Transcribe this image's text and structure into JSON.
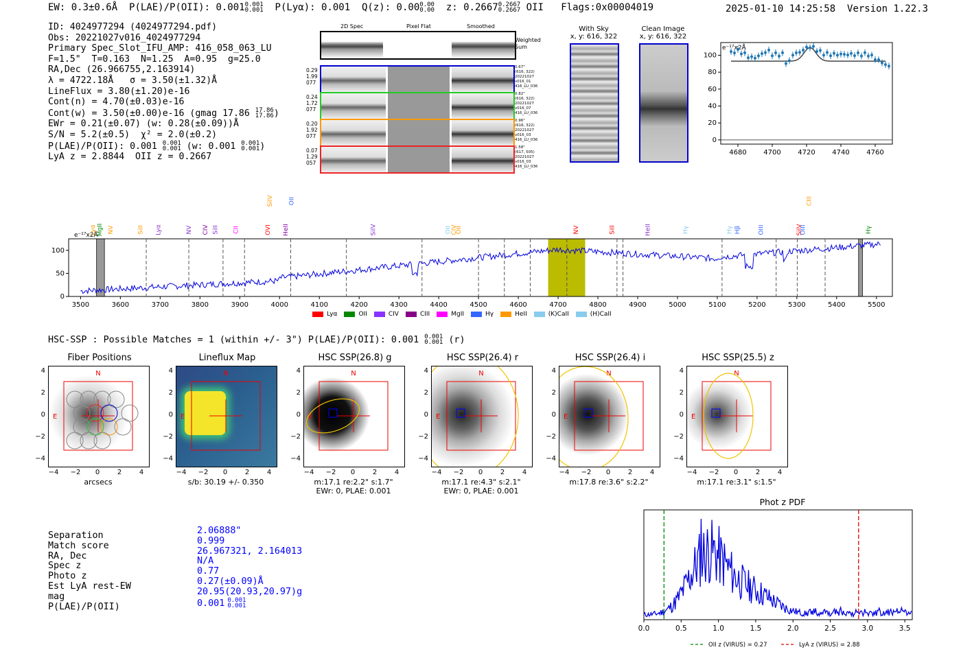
{
  "header": {
    "ew": "EW: 0.3±0.6Å",
    "plae": "P(LAE)/P(OII): 0.001",
    "plae_up": "0.001",
    "plae_lo": "0.001",
    "plya": "P(Lyα): 0.001",
    "qz": "Q(z): 0.00",
    "qz_up": "0.00",
    "qz_lo": "0.00",
    "z": "z: 0.2667",
    "z_up": "0.2667",
    "z_lo": "0.2667",
    "z_line": "OII",
    "flags": "Flags:0x00004019",
    "datetime": "2025-01-10 14:25:58",
    "version": "Version 1.22.3"
  },
  "info": {
    "id": "ID: 4024977294 (4024977294.pdf)",
    "obs": "Obs: 20221027v016_4024977294",
    "primary": "Primary Spec_Slot_IFU_AMP: 416_058_063_LU",
    "params": "F=1.5\"  T=0.163  N=1.25  A=0.95  g=25.0",
    "radec": "RA,Dec (26.966755,2.163914)",
    "lambda": "λ = 4722.18Å   σ = 3.50(±1.32)Å",
    "lineflux": "LineFlux = 3.80(±1.20)e-16",
    "contn": "Cont(n) = 4.70(±0.03)e-16",
    "contw": "Cont(w) = 3.50(±0.00)e-16 (gmag 17.86",
    "contw_up": "17.86",
    "contw_lo": "17.86",
    "ewr": "EWr = 0.21(±0.07) (w: 0.28(±0.09))Å",
    "sn": "S/N = 5.2(±0.5)  χ² = 2.0(±0.2)",
    "plae": "P(LAE)/P(OII): 0.001",
    "plae_up": "0.001",
    "plae_lo": "0.001",
    "plae_w": "(w: 0.001",
    "plae_w_up": "0.001",
    "plae_w_lo": "0.001",
    "lyaz": "LyA z = 2.8844  OII z = 0.2667"
  },
  "cutouts": {
    "col_2d": "2D Spec",
    "col_flat": "Pixel Flat",
    "col_smooth": "Smoothed",
    "weighted": "Weighted Sum",
    "rows": [
      {
        "left": [
          "0.29",
          "1.99",
          "077"
        ],
        "right": [
          "0.67\"",
          "(616, 322)",
          "20221027",
          "v016_01",
          "416_LU_036"
        ],
        "color": "#0000cc"
      },
      {
        "left": [
          "0.24",
          "1.72",
          "077"
        ],
        "right": [
          "0.82\"",
          "(616, 322)",
          "20221027",
          "v016_07",
          "416_LU_036"
        ],
        "color": "#22cc22"
      },
      {
        "left": [
          "0.20",
          "1.92",
          "077"
        ],
        "right": [
          "0.96\"",
          "(616, 322)",
          "20221027",
          "v016_03",
          "416_LU_036"
        ],
        "color": "#ff9900"
      },
      {
        "left": [
          "0.07",
          "1.29",
          "057"
        ],
        "right": [
          "1.58\"",
          "(617, 505)",
          "20221027",
          "v016_03",
          "416_LU_036"
        ],
        "color": "#ee2222"
      }
    ]
  },
  "sky": {
    "with_sky": "With Sky",
    "with_sky_xy": "x, y: 616, 322",
    "clean": "Clean Image",
    "clean_xy": "x, y: 616, 322"
  },
  "zoom_plot": {
    "scale": "e⁻¹⁷x2Å",
    "xticks": [
      "4680",
      "4700",
      "4720",
      "4740",
      "4760"
    ],
    "yticks": [
      "0",
      "20",
      "40",
      "60",
      "80",
      "100"
    ]
  },
  "full_spectrum": {
    "scale": "e⁻¹⁷x2Å",
    "xticks": [
      "3500",
      "3600",
      "3700",
      "3800",
      "3900",
      "4000",
      "4100",
      "4200",
      "4300",
      "4400",
      "4500",
      "4600",
      "4700",
      "4800",
      "4900",
      "5000",
      "5100",
      "5200",
      "5300",
      "5400",
      "5500"
    ],
    "yticks": [
      "0",
      "50",
      "100"
    ],
    "lines": [
      {
        "label": "Lyα",
        "color": "#ff9900",
        "tier": 1
      },
      {
        "label": "MgII",
        "color": "#008800",
        "tier": 1
      },
      {
        "label": "NV",
        "color": "#ff9900",
        "tier": 1
      },
      {
        "label": "SiII",
        "color": "#ff9900",
        "tier": 1
      },
      {
        "label": "Lyα",
        "color": "#8833cc",
        "tier": 1
      },
      {
        "label": "NV",
        "color": "#8833cc",
        "tier": 1
      },
      {
        "label": "CIV",
        "color": "#8800aa",
        "tier": 1
      },
      {
        "label": "SiII",
        "color": "#8833cc",
        "tier": 1
      },
      {
        "label": "CII",
        "color": "#ff00ff",
        "tier": 1
      },
      {
        "label": "OVI",
        "color": "#ff0000",
        "tier": 1
      },
      {
        "label": "SiIV",
        "color": "#ff9900",
        "tier": 0
      },
      {
        "label": "HeII",
        "color": "#8800aa",
        "tier": 1
      },
      {
        "label": "OII",
        "color": "#3366ff",
        "tier": 0
      },
      {
        "label": "SiIV",
        "color": "#8833cc",
        "tier": 1
      },
      {
        "label": "OII",
        "color": "#88ccee",
        "tier": 1
      },
      {
        "label": "CIV",
        "color": "#ff9900",
        "tier": 1
      },
      {
        "label": "OII",
        "color": "#ff9900",
        "tier": 1
      },
      {
        "label": "NV",
        "color": "#ff0000",
        "tier": 1
      },
      {
        "label": "SiII",
        "color": "#ff0000",
        "tier": 1
      },
      {
        "label": "HeII",
        "color": "#8833cc",
        "tier": 1
      },
      {
        "label": "Hγ",
        "color": "#88ccee",
        "tier": 1
      },
      {
        "label": "Hγ",
        "color": "#88ccee",
        "tier": 1
      },
      {
        "label": "Hβ",
        "color": "#3366ff",
        "tier": 1
      },
      {
        "label": "OIII",
        "color": "#3366ff",
        "tier": 1
      },
      {
        "label": "SiIV",
        "color": "#ff0000",
        "tier": 1
      },
      {
        "label": "OIII",
        "color": "#3366ff",
        "tier": 1
      },
      {
        "label": "CIII",
        "color": "#ff9900",
        "tier": 0
      },
      {
        "label": "Hγ",
        "color": "#008800",
        "tier": 1
      }
    ],
    "legend": [
      {
        "label": "Lyα",
        "color": "#ff0000"
      },
      {
        "label": "OII",
        "color": "#008800"
      },
      {
        "label": "CIV",
        "color": "#8833ff"
      },
      {
        "label": "CIII",
        "color": "#880088"
      },
      {
        "label": "MgII",
        "color": "#ff00ff"
      },
      {
        "label": "Hγ",
        "color": "#3366ff"
      },
      {
        "label": "HeII",
        "color": "#ff9900"
      },
      {
        "label": "(K)CaII",
        "color": "#88ccee"
      },
      {
        "label": "(H)CaII",
        "color": "#88ccee"
      }
    ]
  },
  "hsc": {
    "summary": "HSC-SSP : Possible Matches = 1 (within +/- 3\")  P(LAE)/P(OII): 0.001",
    "summary_up": "0.001",
    "summary_lo": "0.001",
    "summary_tail": "(r)",
    "panels": [
      {
        "title": "Fiber Positions",
        "lines": [
          "arcsecs"
        ]
      },
      {
        "title": "Lineflux Map",
        "lines": [
          "s/b: 30.19 +/- 0.350"
        ]
      },
      {
        "title": "HSC SSP(26.8) g",
        "lines": [
          "m:17.1  re:2.2\"  s:1.7\"",
          "EWr: 0, PLAE: 0.001"
        ]
      },
      {
        "title": "HSC SSP(26.4) r",
        "lines": [
          "m:17.1  re:4.3\"  s:2.1\"",
          "EWr: 0, PLAE: 0.001"
        ]
      },
      {
        "title": "HSC SSP(26.4) i",
        "lines": [
          "m:17.8  re:3.6\"  s:2.2\""
        ]
      },
      {
        "title": "HSC SSP(25.5) z",
        "lines": [
          "m:17.1  re:3.1\"  s:1.5\""
        ]
      }
    ],
    "ticks": [
      "4",
      "2",
      "0",
      "−2",
      "−4"
    ],
    "xticks": [
      "−4",
      "−2",
      "0",
      "2",
      "4"
    ],
    "north": "N",
    "east": "E"
  },
  "match": {
    "labels": [
      "Separation",
      "Match score",
      "RA, Dec",
      "Spec z",
      "Photo z",
      "Est LyA rest-EW",
      "mag",
      "P(LAE)/P(OII)"
    ],
    "values": [
      "2.06888\"",
      "0.999",
      "26.967321, 2.164013",
      "N/A",
      "0.77",
      "0.27(±0.09)Å",
      "20.95(20.93,20.97)g",
      "0.001"
    ],
    "plae_up": "0.001",
    "plae_lo": "0.001"
  },
  "photz": {
    "title": "Phot z PDF",
    "xticks": [
      "0.0",
      "0.5",
      "1.0",
      "1.5",
      "2.0",
      "2.5",
      "3.0",
      "3.5"
    ],
    "oii_z": 0.27,
    "lya_z": 2.88,
    "legend_oii": "OII z (VIRUS) = 0.27",
    "legend_lya": "LyA z (VIRUS) = 2.88"
  }
}
